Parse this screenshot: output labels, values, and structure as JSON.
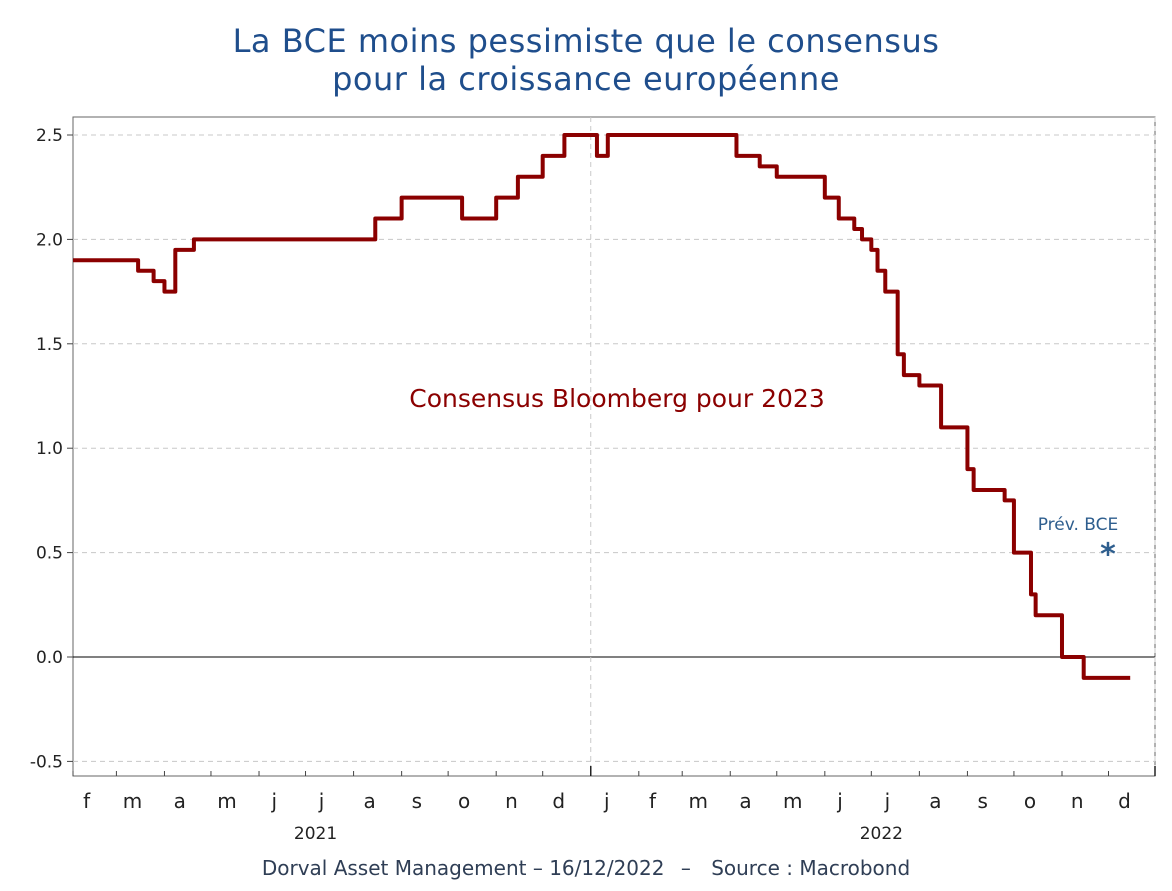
{
  "title": {
    "line1": "La BCE moins pessimiste que le consensus",
    "line2": "pour la croissance européenne"
  },
  "footer": {
    "left": "Dorval Asset Management",
    "dash1": "–",
    "date": "16/12/2022",
    "dash2": "–",
    "source": "Source : Macrobond"
  },
  "colors": {
    "title": "#1f4e8c",
    "series": "#8b0000",
    "annotation_bce": "#2e5e8e",
    "grid": "#c8c8c8"
  },
  "chart_data": {
    "type": "line",
    "title": "La BCE moins pessimiste que le consensus pour la croissance européenne",
    "xlabel": "",
    "ylabel": "",
    "ylim": [
      -0.6,
      2.6
    ],
    "yticks": [
      2.5,
      2.0,
      1.5,
      1.0,
      0.5,
      0.0,
      -0.5
    ],
    "ytick_labels": [
      "2.5",
      "2.0",
      "1.5",
      "1.0",
      "0.5",
      "0.0",
      "-0.5"
    ],
    "xlim": [
      "2021-02-01",
      "2022-12-31"
    ],
    "month_labels": [
      "f",
      "m",
      "a",
      "m",
      "j",
      "j",
      "a",
      "s",
      "o",
      "n",
      "d",
      "j",
      "f",
      "m",
      "a",
      "m",
      "j",
      "j",
      "a",
      "s",
      "o",
      "n",
      "d"
    ],
    "year_labels": [
      {
        "label": "2021",
        "date": "2021-07-01"
      },
      {
        "label": "2022",
        "date": "2022-07-01"
      }
    ],
    "grid": true,
    "series": [
      {
        "name": "Consensus Bloomberg pour 2023",
        "step": true,
        "points": [
          [
            "2021-02-01",
            1.9
          ],
          [
            "2021-03-15",
            1.85
          ],
          [
            "2021-03-25",
            1.8
          ],
          [
            "2021-04-01",
            1.75
          ],
          [
            "2021-04-08",
            1.95
          ],
          [
            "2021-04-20",
            2.0
          ],
          [
            "2021-08-15",
            2.1
          ],
          [
            "2021-09-01",
            2.2
          ],
          [
            "2021-10-10",
            2.1
          ],
          [
            "2021-11-01",
            2.2
          ],
          [
            "2021-11-15",
            2.3
          ],
          [
            "2021-12-01",
            2.4
          ],
          [
            "2021-12-15",
            2.5
          ],
          [
            "2022-01-05",
            2.4
          ],
          [
            "2022-01-12",
            2.5
          ],
          [
            "2022-04-05",
            2.4
          ],
          [
            "2022-04-20",
            2.35
          ],
          [
            "2022-05-01",
            2.3
          ],
          [
            "2022-06-01",
            2.2
          ],
          [
            "2022-06-10",
            2.1
          ],
          [
            "2022-06-20",
            2.05
          ],
          [
            "2022-06-25",
            2.0
          ],
          [
            "2022-07-01",
            1.95
          ],
          [
            "2022-07-05",
            1.85
          ],
          [
            "2022-07-10",
            1.75
          ],
          [
            "2022-07-18",
            1.45
          ],
          [
            "2022-07-22",
            1.35
          ],
          [
            "2022-08-01",
            1.3
          ],
          [
            "2022-08-15",
            1.1
          ],
          [
            "2022-09-01",
            0.9
          ],
          [
            "2022-09-05",
            0.8
          ],
          [
            "2022-09-25",
            0.75
          ],
          [
            "2022-10-01",
            0.5
          ],
          [
            "2022-10-12",
            0.3
          ],
          [
            "2022-10-15",
            0.2
          ],
          [
            "2022-11-01",
            0.0
          ],
          [
            "2022-11-15",
            -0.1
          ],
          [
            "2022-12-15",
            -0.1
          ]
        ]
      }
    ],
    "annotations": [
      {
        "text": "Consensus Bloomberg pour 2023",
        "color": "#8b0000"
      },
      {
        "text": "Prév. BCE",
        "color": "#2e5e8e"
      }
    ],
    "markers": [
      {
        "name": "Prév. BCE",
        "date": "2022-12-15",
        "value": 0.5,
        "symbol": "*"
      }
    ]
  }
}
